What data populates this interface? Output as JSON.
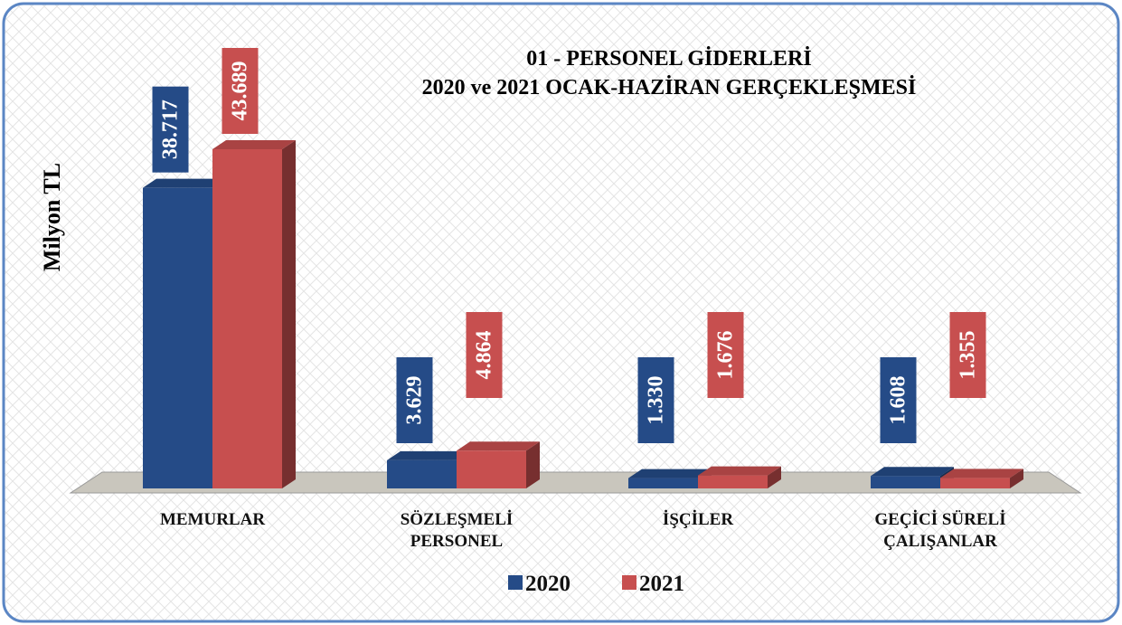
{
  "chart_data": {
    "type": "bar3d",
    "title": "01 - PERSONEL GİDERLERİ",
    "subtitle": "2020 ve 2021 OCAK-HAZİRAN GERÇEKLEŞMESİ",
    "y_label": "Milyon TL",
    "categories": [
      "MEMURLAR",
      "SÖZLEŞMELİ PERSONEL",
      "İŞÇİLER",
      "GEÇİCİ SÜRELİ ÇALIŞANLAR"
    ],
    "series": [
      {
        "name": "2020",
        "color": "#254b87",
        "values": [
          38717,
          3629,
          1330,
          1608
        ],
        "value_labels": [
          "38.717",
          "3.629",
          "1.330",
          "1.608"
        ]
      },
      {
        "name": "2021",
        "color": "#c74f4f",
        "values": [
          43689,
          4864,
          1676,
          1355
        ],
        "value_labels": [
          "43.689",
          "4.864",
          "1.676",
          "1.355"
        ]
      }
    ],
    "legend": "bottom"
  }
}
